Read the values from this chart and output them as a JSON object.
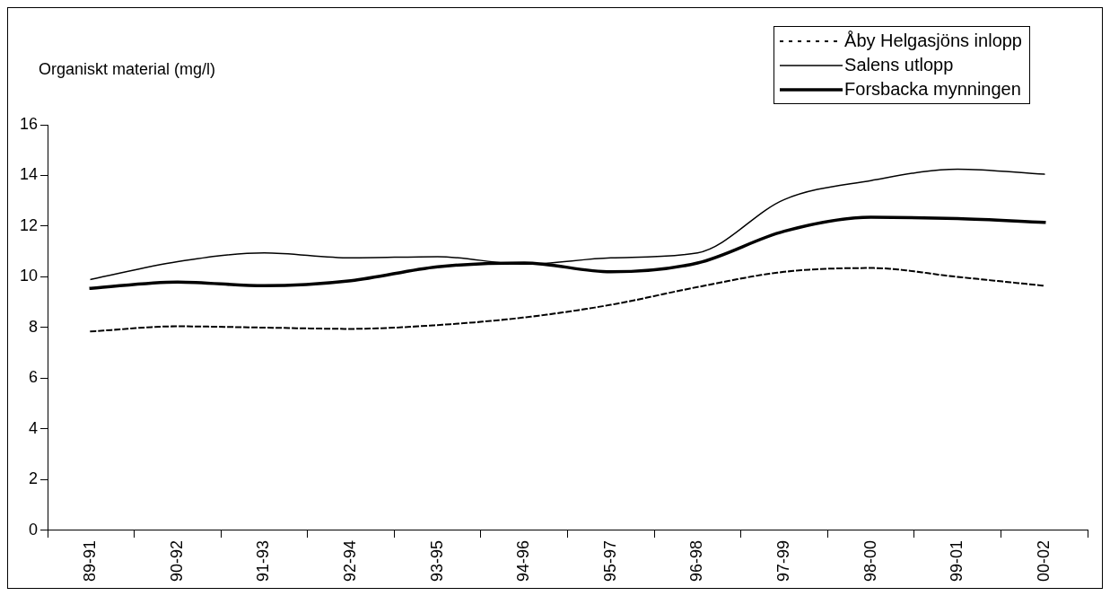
{
  "chart_data": {
    "type": "line",
    "ylabel": "Organiskt material (mg/l)",
    "categories": [
      "89-91",
      "90-92",
      "91-93",
      "92-94",
      "93-95",
      "94-96",
      "95-97",
      "96-98",
      "97-99",
      "98-00",
      "99-01",
      "00-02"
    ],
    "series": [
      {
        "name": "Åby Helgasjöns inlopp",
        "color": "#000000",
        "line_style": "dotted",
        "values": [
          7.85,
          8.05,
          8.0,
          7.95,
          8.1,
          8.4,
          8.9,
          9.6,
          10.2,
          10.35,
          10.0,
          9.65
        ]
      },
      {
        "name": "Salens utlopp",
        "color": "#000000",
        "line_style": "solid",
        "values": [
          9.9,
          10.6,
          10.95,
          10.75,
          10.8,
          10.5,
          10.75,
          10.95,
          13.05,
          13.8,
          14.25,
          14.05
        ]
      },
      {
        "name": "Forsbacka mynningen",
        "color": "#000000",
        "line_style": "solid",
        "values": [
          9.55,
          9.8,
          9.65,
          9.85,
          10.4,
          10.55,
          10.2,
          10.55,
          11.8,
          12.35,
          12.3,
          12.15
        ]
      }
    ],
    "ylim": [
      0,
      16
    ],
    "yticks": [
      0,
      2,
      4,
      6,
      8,
      10,
      12,
      14,
      16
    ],
    "grid": false,
    "legend": "top right",
    "marker": "none"
  }
}
